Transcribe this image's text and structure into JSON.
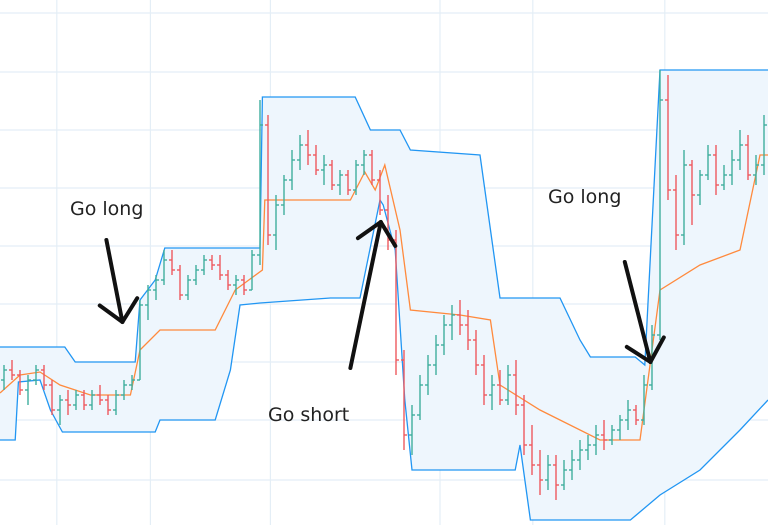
{
  "chart_data": {
    "type": "ohlc",
    "title": "",
    "xlabel": "",
    "ylabel": "",
    "xlim": [
      0,
      96
    ],
    "ylim": [
      0,
      105
    ],
    "grid": true,
    "colors": {
      "up": "#3fae9e",
      "down": "#ee5a5f",
      "channel": "#2196f3",
      "channel_fill": "#eef6fd",
      "midline": "#ff8a3d",
      "grid": "#e4eef6",
      "annotation": "#111111"
    },
    "bars": [
      [
        29,
        32,
        27,
        31
      ],
      [
        31,
        33,
        29,
        30
      ],
      [
        30,
        31,
        26,
        27
      ],
      [
        27,
        30,
        24,
        29
      ],
      [
        29,
        32,
        28,
        31
      ],
      [
        31,
        32,
        27,
        28
      ],
      [
        28,
        29,
        22,
        23
      ],
      [
        23,
        26,
        20,
        25
      ],
      [
        25,
        27,
        22,
        24
      ],
      [
        24,
        27,
        23,
        26
      ],
      [
        26,
        27,
        23,
        24
      ],
      [
        24,
        27,
        23,
        26
      ],
      [
        26,
        28,
        24,
        25
      ],
      [
        25,
        26,
        22,
        23
      ],
      [
        23,
        27,
        22,
        26
      ],
      [
        26,
        29,
        25,
        28
      ],
      [
        28,
        30,
        27,
        29
      ],
      [
        29,
        45,
        29,
        44
      ],
      [
        44,
        48,
        41,
        47
      ],
      [
        47,
        50,
        45,
        49
      ],
      [
        49,
        55,
        48,
        53
      ],
      [
        53,
        55,
        50,
        51
      ],
      [
        51,
        52,
        45,
        46
      ],
      [
        46,
        50,
        45,
        49
      ],
      [
        49,
        52,
        48,
        51
      ],
      [
        51,
        54,
        50,
        53
      ],
      [
        53,
        54,
        51,
        52
      ],
      [
        52,
        54,
        49,
        50
      ],
      [
        50,
        51,
        47,
        48
      ],
      [
        48,
        50,
        46,
        49
      ],
      [
        49,
        50,
        46,
        47
      ],
      [
        47,
        55,
        47,
        54
      ],
      [
        54,
        85,
        52,
        80
      ],
      [
        80,
        82,
        56,
        58
      ],
      [
        58,
        66,
        55,
        64
      ],
      [
        64,
        70,
        62,
        69
      ],
      [
        69,
        75,
        67,
        73
      ],
      [
        73,
        78,
        71,
        76
      ],
      [
        76,
        79,
        72,
        74
      ],
      [
        74,
        76,
        70,
        71
      ],
      [
        71,
        74,
        68,
        72
      ],
      [
        72,
        73,
        67,
        68
      ],
      [
        68,
        71,
        66,
        70
      ],
      [
        70,
        71,
        66,
        67
      ],
      [
        67,
        73,
        66,
        72
      ],
      [
        72,
        75,
        70,
        74
      ],
      [
        74,
        75,
        68,
        69
      ],
      [
        69,
        71,
        62,
        63
      ],
      [
        63,
        66,
        55,
        57
      ],
      [
        57,
        59,
        30,
        33
      ],
      [
        33,
        35,
        15,
        18
      ],
      [
        18,
        24,
        14,
        22
      ],
      [
        22,
        30,
        21,
        28
      ],
      [
        28,
        34,
        26,
        32
      ],
      [
        32,
        38,
        30,
        36
      ],
      [
        36,
        42,
        34,
        40
      ],
      [
        40,
        44,
        37,
        42
      ],
      [
        42,
        45,
        38,
        40
      ],
      [
        40,
        43,
        35,
        37
      ],
      [
        37,
        39,
        30,
        32
      ],
      [
        32,
        34,
        24,
        26
      ],
      [
        26,
        30,
        23,
        28
      ],
      [
        28,
        31,
        24,
        25
      ],
      [
        25,
        32,
        24,
        30
      ],
      [
        30,
        33,
        22,
        24
      ],
      [
        24,
        26,
        14,
        16
      ],
      [
        16,
        20,
        10,
        12
      ],
      [
        12,
        15,
        6,
        9
      ],
      [
        9,
        14,
        7,
        12
      ],
      [
        12,
        14,
        5,
        8
      ],
      [
        8,
        13,
        7,
        11
      ],
      [
        11,
        15,
        9,
        13
      ],
      [
        13,
        17,
        11,
        15
      ],
      [
        15,
        18,
        13,
        16
      ],
      [
        16,
        20,
        14,
        18
      ],
      [
        18,
        21,
        15,
        17
      ],
      [
        17,
        20,
        16,
        19
      ],
      [
        19,
        22,
        17,
        21
      ],
      [
        21,
        25,
        19,
        23
      ],
      [
        23,
        24,
        20,
        21
      ],
      [
        21,
        30,
        20,
        28
      ],
      [
        28,
        40,
        27,
        38
      ],
      [
        38,
        91,
        37,
        85
      ],
      [
        85,
        90,
        65,
        67
      ],
      [
        67,
        70,
        55,
        58
      ],
      [
        58,
        75,
        56,
        72
      ],
      [
        72,
        73,
        60,
        66
      ],
      [
        66,
        71,
        64,
        70
      ],
      [
        70,
        76,
        69,
        74
      ],
      [
        74,
        76,
        66,
        68
      ],
      [
        68,
        72,
        67,
        70
      ],
      [
        70,
        75,
        68,
        73
      ],
      [
        73,
        79,
        71,
        76
      ],
      [
        76,
        78,
        69,
        70
      ],
      [
        70,
        74,
        68,
        72
      ],
      [
        72,
        82,
        70,
        80
      ]
    ],
    "upper_channel": [
      [
        0,
        35.6
      ],
      [
        8.1,
        35.6
      ],
      [
        9.4,
        32.6
      ],
      [
        16.9,
        32.6
      ],
      [
        17.5,
        45
      ],
      [
        19.4,
        49
      ],
      [
        20.6,
        55.4
      ],
      [
        32.5,
        55.4
      ],
      [
        32.8,
        85.6
      ],
      [
        44.4,
        85.6
      ],
      [
        46.3,
        79
      ],
      [
        50,
        79
      ],
      [
        51.3,
        75
      ],
      [
        60,
        74
      ],
      [
        62.5,
        45.4
      ],
      [
        70,
        45.4
      ],
      [
        72.5,
        37
      ],
      [
        73.8,
        33.6
      ],
      [
        79.4,
        33.6
      ],
      [
        80.6,
        32
      ],
      [
        82.5,
        91
      ],
      [
        96,
        91
      ]
    ],
    "lower_channel": [
      [
        0,
        17
      ],
      [
        1.9,
        17
      ],
      [
        2.3,
        28.6
      ],
      [
        5,
        29
      ],
      [
        6.3,
        23
      ],
      [
        7.8,
        18.6
      ],
      [
        19.4,
        18.6
      ],
      [
        20,
        21
      ],
      [
        26.9,
        21
      ],
      [
        28.8,
        31
      ],
      [
        30,
        44
      ],
      [
        32.5,
        44.4
      ],
      [
        41.3,
        45.4
      ],
      [
        45,
        45.4
      ],
      [
        47.5,
        65
      ],
      [
        47.9,
        64
      ],
      [
        49.4,
        55
      ],
      [
        50.6,
        25
      ],
      [
        51.5,
        11
      ],
      [
        64.4,
        11
      ],
      [
        65,
        16
      ],
      [
        66.3,
        1
      ],
      [
        78.8,
        1
      ],
      [
        82.5,
        6
      ],
      [
        87.5,
        11
      ],
      [
        92.5,
        19
      ],
      [
        96,
        25
      ]
    ],
    "middle_line": [
      [
        0,
        26.4
      ],
      [
        2.5,
        30
      ],
      [
        5,
        30.6
      ],
      [
        7.5,
        28
      ],
      [
        11.3,
        26
      ],
      [
        16.3,
        26
      ],
      [
        17.5,
        35
      ],
      [
        20,
        39
      ],
      [
        26.9,
        39
      ],
      [
        29.4,
        47
      ],
      [
        32.8,
        51
      ],
      [
        33.1,
        65
      ],
      [
        43.8,
        65
      ],
      [
        45.6,
        70.6
      ],
      [
        46.9,
        67
      ],
      [
        48.1,
        72
      ],
      [
        50,
        59
      ],
      [
        51.3,
        43
      ],
      [
        57.5,
        42
      ],
      [
        61.3,
        41
      ],
      [
        62.5,
        28
      ],
      [
        67.5,
        23
      ],
      [
        75,
        17
      ],
      [
        80,
        17
      ],
      [
        82.5,
        47
      ],
      [
        87.5,
        52
      ],
      [
        92.5,
        55
      ],
      [
        95,
        74
      ],
      [
        96,
        74
      ]
    ],
    "annotations": [
      {
        "text": "Go long",
        "at": [
          8.75,
          63.4
        ],
        "arrow_from": [
          13.3,
          57
        ],
        "arrow_to": [
          15.3,
          40.6
        ]
      },
      {
        "text": "Go short",
        "at": [
          33.5,
          22.2
        ],
        "arrow_from": [
          43.8,
          31.4
        ],
        "arrow_to": [
          47.6,
          60.6
        ]
      },
      {
        "text": "Go long",
        "at": [
          68.5,
          65.8
        ],
        "arrow_from": [
          78.1,
          52.6
        ],
        "arrow_to": [
          81.3,
          32.6
        ]
      }
    ]
  }
}
